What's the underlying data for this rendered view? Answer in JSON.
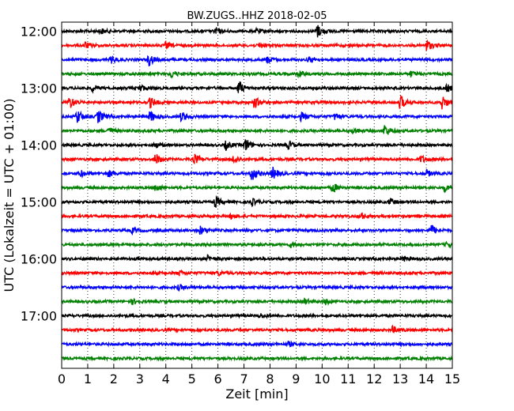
{
  "chart_data": {
    "type": "line",
    "title": "BW.ZUGS..HHZ 2018-02-05",
    "xlabel": "Zeit  [min]",
    "ylabel": "UTC (Lokalzeit = UTC + 01:00)",
    "xlim": [
      0,
      15
    ],
    "x_ticks": [
      "0",
      "1",
      "2",
      "3",
      "4",
      "5",
      "6",
      "7",
      "8",
      "9",
      "10",
      "11",
      "12",
      "13",
      "14",
      "15"
    ],
    "y_ticks": [
      "12:00",
      "13:00",
      "14:00",
      "15:00",
      "16:00",
      "17:00"
    ],
    "grid": "vertical dotted lines at each minute",
    "trace_colors": [
      "#000000",
      "#ff0000",
      "#0000ff",
      "#008000"
    ],
    "traces": [
      {
        "start": "12:00",
        "events": [
          [
            5.9,
            0.5
          ],
          [
            9.8,
            1.0
          ],
          [
            1.5,
            0.4
          ],
          [
            7.5,
            0.35
          ]
        ]
      },
      {
        "start": "12:15",
        "events": [
          [
            0.9,
            0.45
          ],
          [
            4.0,
            0.45
          ],
          [
            7.6,
            0.4
          ],
          [
            14.0,
            0.9
          ]
        ]
      },
      {
        "start": "12:30",
        "events": [
          [
            1.9,
            0.5
          ],
          [
            3.35,
            0.85
          ],
          [
            7.9,
            0.5
          ],
          [
            9.5,
            0.4
          ]
        ]
      },
      {
        "start": "12:45",
        "events": [
          [
            4.2,
            0.55
          ],
          [
            9.1,
            0.45
          ],
          [
            13.4,
            0.4
          ]
        ]
      },
      {
        "start": "13:00",
        "events": [
          [
            6.8,
            1.0
          ],
          [
            1.2,
            0.45
          ],
          [
            3.0,
            0.5
          ],
          [
            14.8,
            0.5
          ]
        ]
      },
      {
        "start": "13:15",
        "events": [
          [
            0.3,
            0.9
          ],
          [
            3.4,
            0.75
          ],
          [
            7.4,
            0.85
          ],
          [
            13.0,
            1.0
          ],
          [
            14.6,
            1.0
          ]
        ]
      },
      {
        "start": "13:30",
        "events": [
          [
            0.6,
            0.95
          ],
          [
            1.4,
            0.95
          ],
          [
            3.4,
            0.8
          ],
          [
            4.6,
            0.7
          ],
          [
            9.2,
            0.6
          ],
          [
            10.5,
            0.5
          ]
        ]
      },
      {
        "start": "13:45",
        "events": [
          [
            12.4,
            0.85
          ],
          [
            1.8,
            0.5
          ],
          [
            11.2,
            0.5
          ]
        ]
      },
      {
        "start": "14:00",
        "events": [
          [
            7.05,
            1.0
          ],
          [
            6.3,
            0.6
          ],
          [
            8.7,
            0.6
          ],
          [
            3.6,
            0.45
          ]
        ]
      },
      {
        "start": "14:15",
        "events": [
          [
            3.6,
            0.8
          ],
          [
            5.1,
            0.7
          ],
          [
            6.6,
            0.55
          ],
          [
            13.8,
            0.5
          ]
        ]
      },
      {
        "start": "14:30",
        "events": [
          [
            7.3,
            1.0
          ],
          [
            8.1,
            0.85
          ],
          [
            0.7,
            0.5
          ],
          [
            1.8,
            0.5
          ],
          [
            14.0,
            0.5
          ]
        ]
      },
      {
        "start": "14:45",
        "events": [
          [
            10.4,
            0.7
          ],
          [
            3.6,
            0.55
          ],
          [
            14.7,
            0.5
          ]
        ]
      },
      {
        "start": "15:00",
        "events": [
          [
            5.9,
            0.75
          ],
          [
            7.3,
            0.5
          ],
          [
            12.6,
            0.5
          ]
        ]
      },
      {
        "start": "15:15",
        "events": [
          [
            11.5,
            0.4
          ],
          [
            6.5,
            0.35
          ]
        ]
      },
      {
        "start": "15:30",
        "events": [
          [
            5.3,
            0.6
          ],
          [
            14.2,
            0.7
          ],
          [
            2.7,
            0.35
          ]
        ]
      },
      {
        "start": "15:45",
        "events": [
          [
            8.8,
            0.35
          ],
          [
            14.8,
            0.35
          ]
        ]
      },
      {
        "start": "16:00",
        "events": [
          [
            5.6,
            0.4
          ],
          [
            13.1,
            0.4
          ]
        ]
      },
      {
        "start": "16:15",
        "events": [
          [
            4.5,
            0.35
          ],
          [
            6.0,
            0.3
          ]
        ]
      },
      {
        "start": "16:30",
        "events": [
          [
            4.5,
            0.35
          ]
        ]
      },
      {
        "start": "16:45",
        "events": [
          [
            9.3,
            0.45
          ],
          [
            10.1,
            0.4
          ],
          [
            2.7,
            0.35
          ]
        ]
      },
      {
        "start": "17:00",
        "events": [
          [
            7.6,
            0.3
          ]
        ]
      },
      {
        "start": "17:15",
        "events": [
          [
            12.7,
            0.45
          ]
        ]
      },
      {
        "start": "17:30",
        "events": [
          [
            8.7,
            0.3
          ]
        ]
      },
      {
        "start": "17:45",
        "events": []
      }
    ]
  }
}
